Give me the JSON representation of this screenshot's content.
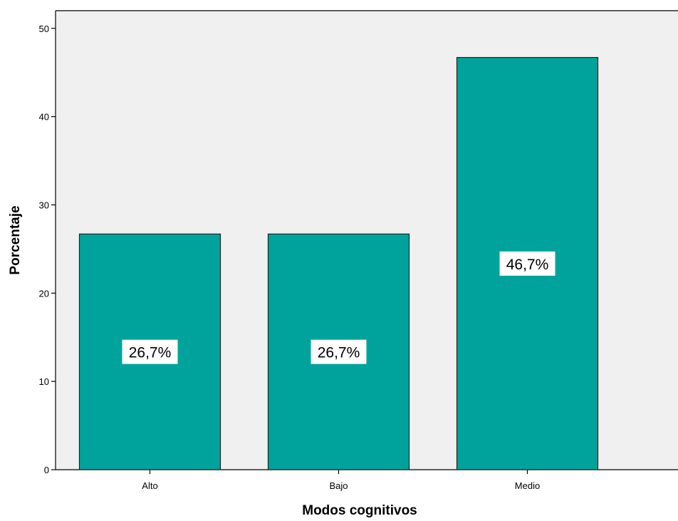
{
  "chart_data": {
    "type": "bar",
    "title": "",
    "xlabel": "Modos cognitivos",
    "ylabel": "Porcentaje",
    "categories": [
      "Alto",
      "Bajo",
      "Medio"
    ],
    "values": [
      26.7,
      26.7,
      46.7
    ],
    "data_labels": [
      "26,7%",
      "26,7%",
      "46,7%"
    ],
    "ylim": [
      0,
      52
    ],
    "yticks": [
      0,
      10,
      20,
      30,
      40,
      50
    ],
    "ytick_labels": [
      "0",
      "10",
      "20",
      "30",
      "40",
      "50"
    ],
    "grid": false,
    "legend": "none",
    "colors": {
      "bar_fill": "#00A39B",
      "bar_stroke": "#222222",
      "plot_background": "#F0F0F0",
      "label_background": "#FFFFFF"
    }
  }
}
